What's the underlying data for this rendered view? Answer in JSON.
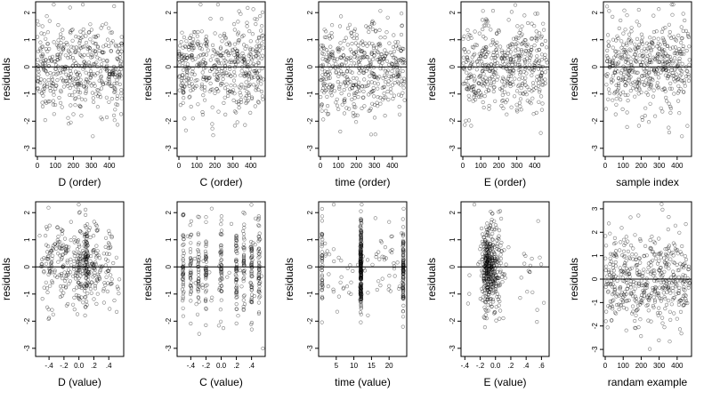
{
  "chart_data": [
    {
      "type": "scatter",
      "xlabel": "D (order)",
      "ylabel": "residuals",
      "xlim": [
        -10,
        480
      ],
      "ylim": [
        -3.3,
        2.4
      ],
      "x_ticks": [
        0,
        100,
        200,
        300,
        400
      ],
      "y_ticks": [
        -3,
        -2,
        -1,
        0,
        1,
        2
      ],
      "y_tick_labels": [
        "-3",
        "-2",
        "-1",
        "0",
        "1",
        "2"
      ],
      "reference_line": 0,
      "grid": false,
      "marker": "open-circle",
      "n_points": 470,
      "x_spread": [
        0,
        470
      ],
      "x_clusters": [],
      "y_sd": 0.85,
      "seed": 11
    },
    {
      "type": "scatter",
      "xlabel": "C (order)",
      "ylabel": "residuals",
      "xlim": [
        -10,
        480
      ],
      "ylim": [
        -3.3,
        2.4
      ],
      "x_ticks": [
        0,
        100,
        200,
        300,
        400
      ],
      "y_ticks": [
        -3,
        -2,
        -1,
        0,
        1,
        2
      ],
      "y_tick_labels": [
        "-3",
        "-2",
        "-1",
        "0",
        "1",
        "2"
      ],
      "reference_line": 0,
      "grid": false,
      "marker": "open-circle",
      "n_points": 470,
      "x_spread": [
        0,
        470
      ],
      "x_clusters": [],
      "y_sd": 0.85,
      "seed": 23
    },
    {
      "type": "scatter",
      "xlabel": "time (order)",
      "ylabel": "residuals",
      "xlim": [
        -10,
        480
      ],
      "ylim": [
        -3.3,
        2.4
      ],
      "x_ticks": [
        0,
        100,
        200,
        300,
        400
      ],
      "y_ticks": [
        -3,
        -2,
        -1,
        0,
        1,
        2
      ],
      "y_tick_labels": [
        "-3",
        "-2",
        "-1",
        "0",
        "1",
        "2"
      ],
      "reference_line": 0,
      "grid": false,
      "marker": "open-circle",
      "n_points": 470,
      "x_spread": [
        0,
        470
      ],
      "x_clusters": [],
      "y_sd": 0.85,
      "seed": 37
    },
    {
      "type": "scatter",
      "xlabel": "E (order)",
      "ylabel": "residuals",
      "xlim": [
        -10,
        480
      ],
      "ylim": [
        -3.3,
        2.4
      ],
      "x_ticks": [
        0,
        100,
        200,
        300,
        400
      ],
      "y_ticks": [
        -3,
        -2,
        -1,
        0,
        1,
        2
      ],
      "y_tick_labels": [
        "-3",
        "-2",
        "-1",
        "0",
        "1",
        "2"
      ],
      "reference_line": 0,
      "grid": false,
      "marker": "open-circle",
      "n_points": 470,
      "x_spread": [
        0,
        470
      ],
      "x_clusters": [],
      "y_sd": 0.85,
      "seed": 41
    },
    {
      "type": "scatter",
      "xlabel": "sample index",
      "ylabel": "residuals",
      "xlim": [
        -10,
        480
      ],
      "ylim": [
        -3.3,
        2.4
      ],
      "x_ticks": [
        0,
        100,
        200,
        300,
        400
      ],
      "y_ticks": [
        -3,
        -2,
        -1,
        0,
        1,
        2
      ],
      "y_tick_labels": [
        "-3",
        "-2",
        "-1",
        "0",
        "1",
        "2"
      ],
      "reference_line": 0,
      "grid": false,
      "marker": "open-circle",
      "n_points": 470,
      "x_spread": [
        0,
        470
      ],
      "x_clusters": [],
      "y_sd": 0.85,
      "seed": 53
    },
    {
      "type": "scatter",
      "xlabel": "D (value)",
      "ylabel": "residuals",
      "xlim": [
        -0.58,
        0.6
      ],
      "ylim": [
        -3.3,
        2.4
      ],
      "x_ticks": [
        -0.4,
        -0.2,
        0.0,
        0.2,
        0.4
      ],
      "y_ticks": [
        -3,
        -2,
        -1,
        0,
        1,
        2
      ],
      "y_tick_labels": [
        "-3",
        "-2",
        "-1",
        "0",
        "1",
        "2"
      ],
      "reference_line": 0,
      "grid": false,
      "marker": "open-circle",
      "n_points": 430,
      "x_spread": [
        -0.55,
        0.55
      ],
      "x_clusters": [
        [
          -0.4,
          0.04,
          0.8
        ],
        [
          -0.2,
          0.05,
          1.0
        ],
        [
          0.0,
          0.04,
          1.2
        ],
        [
          0.1,
          0.02,
          2.0
        ],
        [
          0.2,
          0.04,
          1.0
        ],
        [
          0.4,
          0.05,
          0.7
        ]
      ],
      "y_sd": 0.85,
      "seed": 61
    },
    {
      "type": "scatter",
      "xlabel": "C (value)",
      "ylabel": "residuals",
      "xlim": [
        -0.58,
        0.58
      ],
      "ylim": [
        -3.3,
        2.4
      ],
      "x_ticks": [
        -0.4,
        -0.2,
        0.0,
        0.2,
        0.4
      ],
      "y_ticks": [
        -3,
        -2,
        -1,
        0,
        1,
        2
      ],
      "y_tick_labels": [
        "-3",
        "-2",
        "-1",
        "0",
        "1",
        "2"
      ],
      "reference_line": 0,
      "grid": false,
      "marker": "open-circle",
      "n_points": 430,
      "x_spread": [
        -0.55,
        0.55
      ],
      "x_clusters": [
        [
          -0.5,
          0.005,
          1.0
        ],
        [
          -0.4,
          0.005,
          1.0
        ],
        [
          -0.3,
          0.005,
          1.0
        ],
        [
          -0.2,
          0.005,
          1.2
        ],
        [
          0.0,
          0.005,
          1.0
        ],
        [
          0.2,
          0.005,
          1.4
        ],
        [
          0.3,
          0.005,
          1.0
        ],
        [
          0.4,
          0.005,
          1.0
        ],
        [
          0.5,
          0.005,
          1.0
        ]
      ],
      "y_sd": 0.85,
      "seed": 71
    },
    {
      "type": "scatter",
      "xlabel": "time (value)",
      "ylabel": "residuals",
      "xlim": [
        0,
        25
      ],
      "ylim": [
        -3.3,
        2.4
      ],
      "x_ticks": [
        5,
        10,
        15,
        20
      ],
      "y_ticks": [
        -3,
        -2,
        -1,
        0,
        1,
        2
      ],
      "y_tick_labels": [
        "-3",
        "-2",
        "-1",
        "0",
        "1",
        "2"
      ],
      "reference_line": 0,
      "grid": false,
      "marker": "open-circle",
      "n_points": 430,
      "x_spread": [
        1,
        24
      ],
      "x_clusters": [
        [
          12,
          0.1,
          2.5
        ],
        [
          24,
          0.05,
          1.0
        ],
        [
          1,
          0.05,
          0.6
        ]
      ],
      "y_sd": 0.85,
      "seed": 83
    },
    {
      "type": "scatter",
      "xlabel": "E (value)",
      "ylabel": "residuals",
      "xlim": [
        -0.45,
        0.7
      ],
      "ylim": [
        -3.3,
        2.4
      ],
      "x_ticks": [
        -0.4,
        -0.2,
        0.0,
        0.2,
        0.4,
        0.6
      ],
      "y_ticks": [
        -3,
        -2,
        -1,
        0,
        1,
        2
      ],
      "y_tick_labels": [
        "-3",
        "-2",
        "-1",
        "0",
        "1",
        "2"
      ],
      "reference_line": 0,
      "grid": false,
      "marker": "open-circle",
      "n_points": 430,
      "x_spread": [
        -0.4,
        0.65
      ],
      "x_clusters": [
        [
          -0.1,
          0.04,
          5.0
        ],
        [
          0.0,
          0.05,
          2.0
        ]
      ],
      "y_sd": 0.85,
      "seed": 97
    },
    {
      "type": "scatter",
      "xlabel": "randam example",
      "ylabel": "residuals",
      "xlim": [
        -10,
        480
      ],
      "ylim": [
        -3.3,
        3.3
      ],
      "x_ticks": [
        0,
        100,
        200,
        300,
        400
      ],
      "y_ticks": [
        -3,
        -2,
        -1,
        0,
        1,
        2,
        3
      ],
      "y_tick_labels": [
        "-3",
        "-2",
        "-1",
        "0",
        "1",
        "2",
        "3"
      ],
      "reference_line": 0,
      "grid": false,
      "marker": "open-circle",
      "n_points": 470,
      "x_spread": [
        0,
        470
      ],
      "x_clusters": [],
      "y_sd": 1.0,
      "seed": 103
    }
  ]
}
